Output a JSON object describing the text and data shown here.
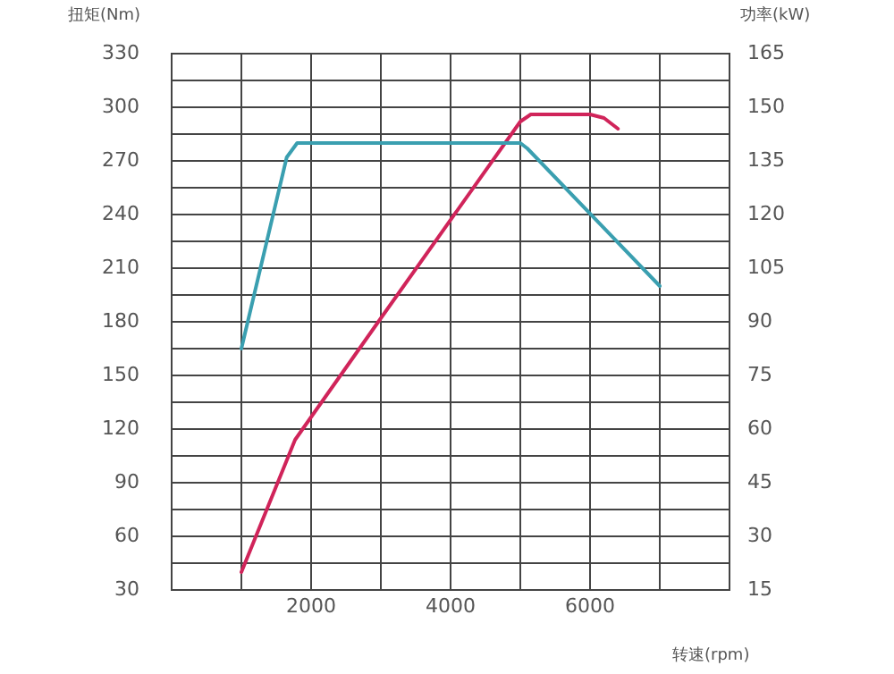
{
  "chart_data": {
    "type": "line",
    "ylabel": "扭矩(Nm)",
    "y2label": "功率(kW)",
    "xlabel": "转速(rpm)",
    "xlim": [
      0,
      8000
    ],
    "xticks": [
      {
        "value": 0,
        "label": null
      },
      {
        "value": 1000,
        "label": null
      },
      2000,
      {
        "value": 3000,
        "label": null
      },
      4000,
      {
        "value": 5000,
        "label": null
      },
      6000,
      {
        "value": 7000,
        "label": null
      },
      {
        "value": 8000,
        "label": null
      }
    ],
    "ylim": [
      30,
      330
    ],
    "yticks": [
      30,
      {
        "value": 45,
        "label": null
      },
      60,
      {
        "value": 75,
        "label": null
      },
      90,
      {
        "value": 105,
        "label": null
      },
      120,
      {
        "value": 135,
        "label": null
      },
      150,
      {
        "value": 165,
        "label": null
      },
      180,
      {
        "value": 195,
        "label": null
      },
      210,
      {
        "value": 225,
        "label": null
      },
      240,
      {
        "value": 255,
        "label": null
      },
      270,
      {
        "value": 285,
        "label": null
      },
      300,
      {
        "value": 315,
        "label": null
      },
      330
    ],
    "y2lim": [
      15,
      165
    ],
    "y2ticks": [
      15,
      30,
      45,
      60,
      75,
      90,
      105,
      120,
      135,
      150,
      165
    ],
    "grid": true,
    "legend": false,
    "marker": "none",
    "line_style": "solid",
    "series": [
      {
        "color": "#3a9fb0",
        "x": [
          1000,
          1650,
          1800,
          5000,
          5100,
          7000
        ],
        "values": [
          165,
          272,
          280,
          280,
          277,
          200
        ]
      },
      {
        "color": "#d0245a",
        "x": [
          1000,
          1770,
          3000,
          5000,
          5150,
          6000,
          6200,
          6400
        ],
        "values": [
          20,
          57,
          91,
          146,
          148,
          148,
          147,
          144
        ],
        "axis": "y2"
      }
    ]
  }
}
